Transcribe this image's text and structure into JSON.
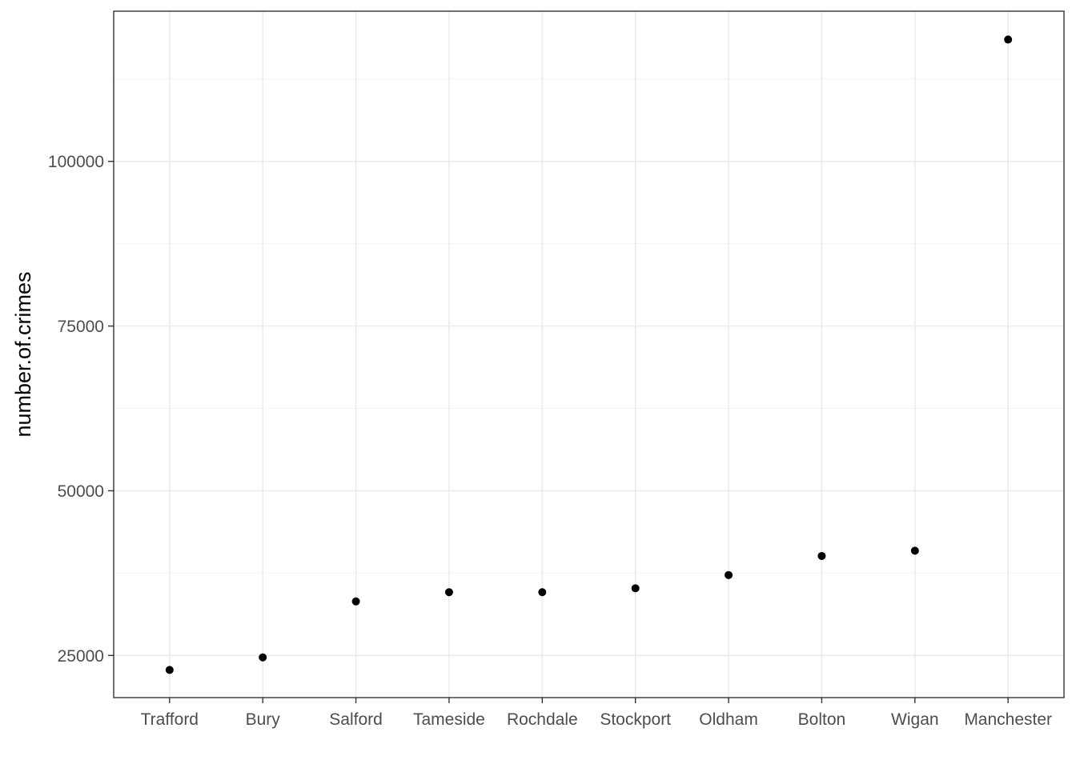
{
  "chart_data": {
    "type": "scatter",
    "title": "",
    "xlabel": "",
    "ylabel": "number.of.crimes",
    "categories": [
      "Trafford",
      "Bury",
      "Salford",
      "Tameside",
      "Rochdale",
      "Stockport",
      "Oldham",
      "Bolton",
      "Wigan",
      "Manchester"
    ],
    "values": [
      22800,
      24700,
      33200,
      34600,
      34600,
      35200,
      37200,
      40100,
      40900,
      118500
    ],
    "yticks": [
      25000,
      50000,
      75000,
      100000
    ],
    "ytick_labels": [
      "25000",
      "50000",
      "75000",
      "100000"
    ],
    "ylim": [
      18600,
      122800
    ],
    "grid": true,
    "legend": "none",
    "point_color": "#000000"
  }
}
